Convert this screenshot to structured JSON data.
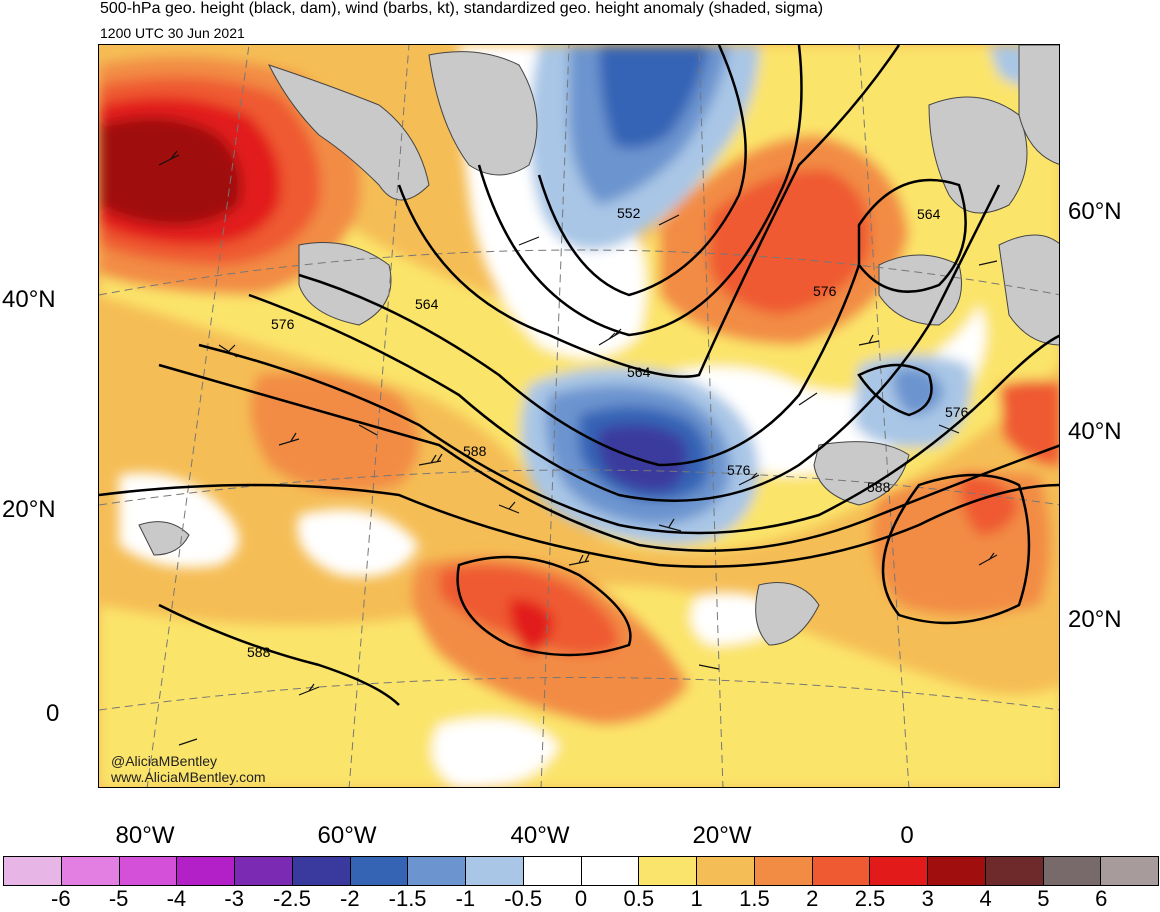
{
  "header": {
    "title": "500-hPa geo. height (black, dam), wind (barbs, kt), standardized geo. height anomaly (shaded, sigma)",
    "valid_time": "1200 UTC 30 Jun 2021"
  },
  "axes": {
    "lat_left": [
      "40°N",
      "20°N",
      "0"
    ],
    "lat_right": [
      "60°N",
      "40°N",
      "20°N"
    ],
    "lon_bottom": [
      "80°W",
      "60°W",
      "40°W",
      "20°W",
      "0"
    ]
  },
  "contour_labels": [
    "552",
    "564",
    "576",
    "564",
    "576",
    "564",
    "576",
    "588",
    "576",
    "588",
    "588",
    "564",
    "576"
  ],
  "credits": {
    "handle": "@AliciaMBentley",
    "website": "www.AliciaMBentley.com"
  },
  "colorbar": {
    "colors": [
      "#e8b6e6",
      "#e37fe3",
      "#d550d8",
      "#b320c8",
      "#7b2bb3",
      "#3a3a9e",
      "#3664b5",
      "#6c94cf",
      "#a9c6e6",
      "#ffffff",
      "#ffffff",
      "#fbe46b",
      "#f5bd55",
      "#f28c45",
      "#ef5a33",
      "#e21a1a",
      "#a00e0e",
      "#6e2a2a",
      "#786a6a",
      "#a79b9b"
    ],
    "labels": [
      "-6",
      "-5",
      "-4",
      "-3",
      "-2.5",
      "-2",
      "-1.5",
      "-1",
      "-0.5",
      "0",
      "0.5",
      "1",
      "1.5",
      "2",
      "2.5",
      "3",
      "4",
      "5",
      "6"
    ]
  }
}
